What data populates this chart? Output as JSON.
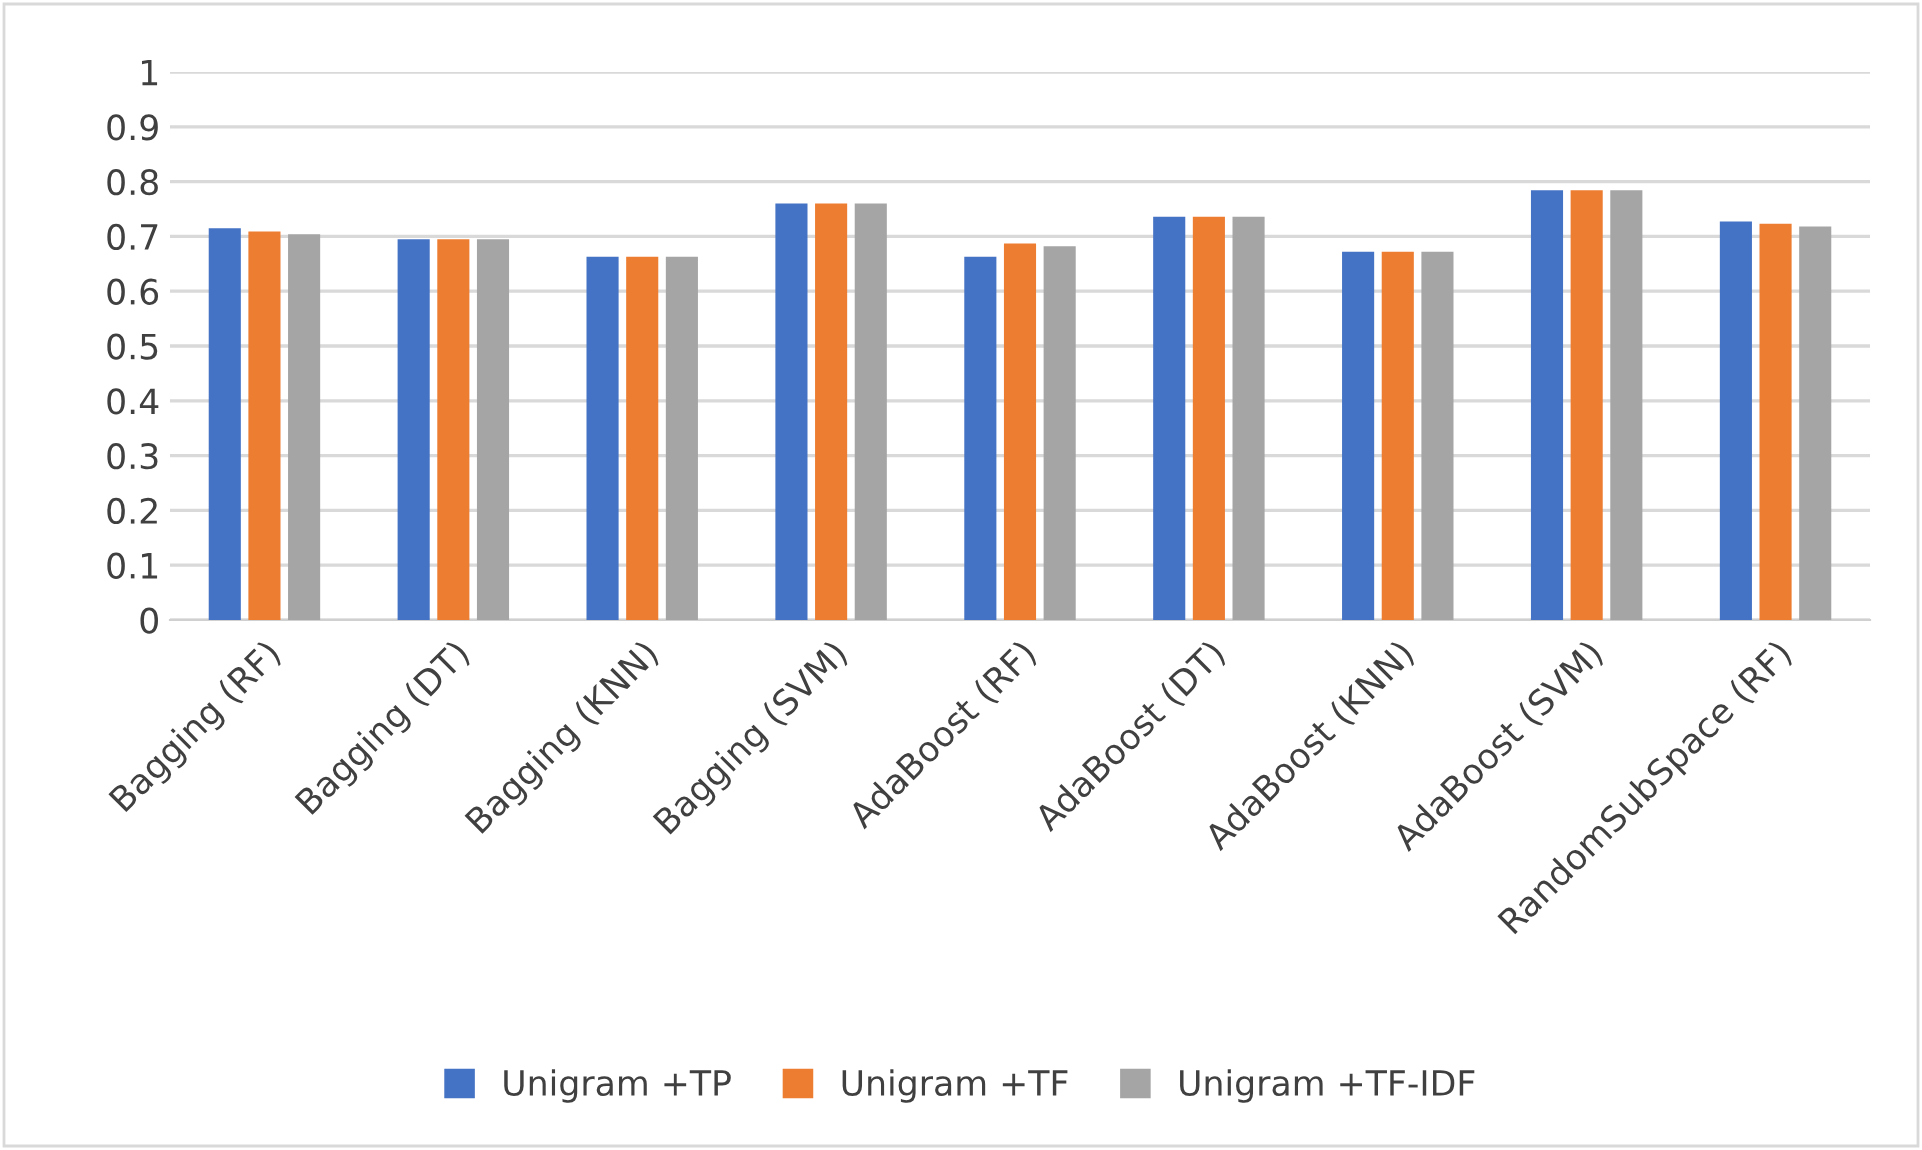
{
  "chart_data": {
    "type": "bar",
    "categories": [
      "Bagging (RF)",
      "Bagging (DT)",
      "Bagging (KNN)",
      "Bagging (SVM)",
      "AdaBoost (RF)",
      "AdaBoost (DT)",
      "AdaBoost (KNN)",
      "AdaBoost (SVM)",
      "RandomSubSpace (RF)"
    ],
    "series": [
      {
        "name": "Unigram +TP",
        "color": "#4472c4",
        "values": [
          0.715,
          0.695,
          0.663,
          0.76,
          0.663,
          0.736,
          0.672,
          0.784,
          0.727
        ]
      },
      {
        "name": "Unigram +TF",
        "color": "#ed7d31",
        "values": [
          0.709,
          0.695,
          0.663,
          0.76,
          0.687,
          0.736,
          0.672,
          0.784,
          0.723
        ]
      },
      {
        "name": "Unigram +TF-IDF",
        "color": "#a5a5a5",
        "values": [
          0.704,
          0.695,
          0.663,
          0.76,
          0.682,
          0.736,
          0.672,
          0.784,
          0.718
        ]
      }
    ],
    "ylim": [
      0,
      1
    ],
    "yticks": [
      0,
      0.1,
      0.2,
      0.3,
      0.4,
      0.5,
      0.6,
      0.7,
      0.8,
      0.9,
      1
    ],
    "grid": "y",
    "legend": "bottom"
  }
}
